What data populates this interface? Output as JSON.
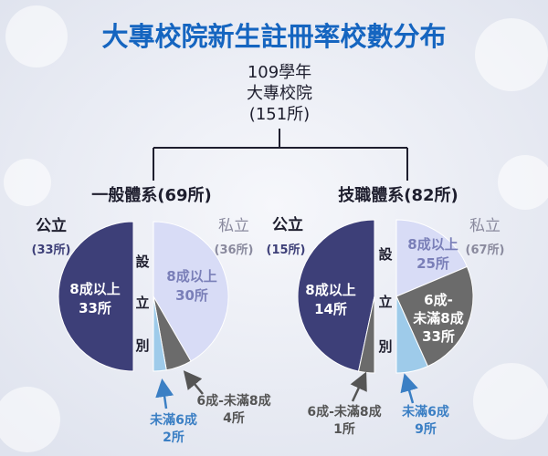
{
  "title": "大專校院新生註冊率校數分布",
  "root": {
    "line1": "109學年",
    "line2": "大專校院",
    "line3": "(151所)"
  },
  "colors": {
    "title": "#1565c0",
    "public": "#3d3f78",
    "private_high": "#d8dcf6",
    "private_high_text": "#7a7fb8",
    "mid": "#6b6b6b",
    "low": "#9ecbea",
    "low_text": "#3b7fc4",
    "mid_text": "#555555",
    "private_label": "#8a8a9e",
    "text_dark": "#1e1e2e"
  },
  "chart_data": [
    {
      "type": "pie",
      "title": "一般體系(69所)",
      "public": {
        "label": "公立",
        "count_label": "(33所)",
        "total": 33
      },
      "private": {
        "label": "私立",
        "count_label": "(36所)",
        "total": 36
      },
      "divider_label": [
        "設",
        "立",
        "別"
      ],
      "slices": [
        {
          "group": "公立",
          "category": "8成以上",
          "value": 33,
          "label_lines": [
            "8成以上",
            "33所"
          ]
        },
        {
          "group": "私立",
          "category": "8成以上",
          "value": 30,
          "label_lines": [
            "8成以上",
            "30所"
          ]
        },
        {
          "group": "私立",
          "category": "6成-未滿8成",
          "value": 4,
          "label_lines": [
            "6成-未滿8成",
            "4所"
          ]
        },
        {
          "group": "私立",
          "category": "未滿6成",
          "value": 2,
          "label_lines": [
            "未滿6成",
            "2所"
          ]
        }
      ]
    },
    {
      "type": "pie",
      "title": "技職體系(82所)",
      "public": {
        "label": "公立",
        "count_label": "(15所)",
        "total": 15
      },
      "private": {
        "label": "私立",
        "count_label": "(67所)",
        "total": 67
      },
      "divider_label": [
        "設",
        "立",
        "別"
      ],
      "slices": [
        {
          "group": "公立",
          "category": "8成以上",
          "value": 14,
          "label_lines": [
            "8成以上",
            "14所"
          ]
        },
        {
          "group": "公立",
          "category": "6成-未滿8成",
          "value": 1,
          "label_lines": [
            "6成-未滿8成",
            "1所"
          ]
        },
        {
          "group": "私立",
          "category": "8成以上",
          "value": 25,
          "label_lines": [
            "8成以上",
            "25所"
          ]
        },
        {
          "group": "私立",
          "category": "6成-未滿8成",
          "value": 33,
          "label_lines": [
            "6成-",
            "未滿8成",
            "33所"
          ]
        },
        {
          "group": "私立",
          "category": "未滿6成",
          "value": 9,
          "label_lines": [
            "未滿6成",
            "9所"
          ]
        }
      ]
    }
  ]
}
